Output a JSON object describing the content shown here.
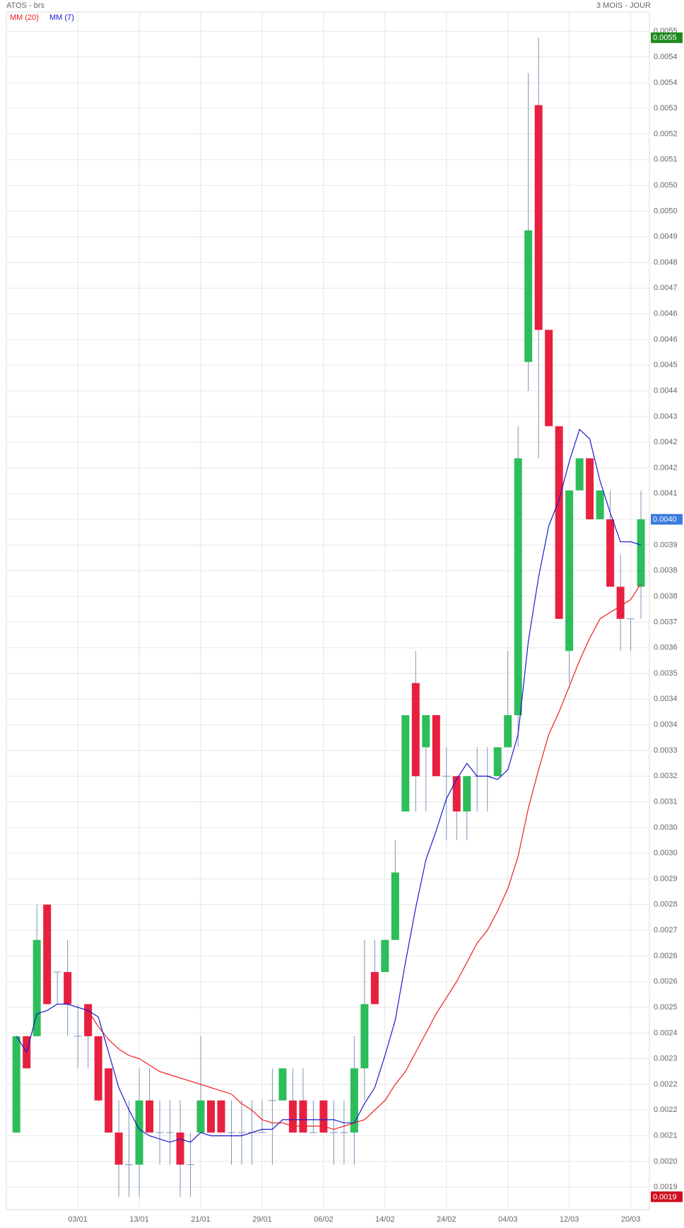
{
  "chart_data": {
    "type": "candlestick",
    "title": "ATOS - brs",
    "subtitle": "3 MOIS - JOUR",
    "categories": [
      null,
      null,
      null,
      null,
      null,
      null,
      "03/01",
      null,
      null,
      null,
      null,
      null,
      "13/01",
      null,
      null,
      null,
      null,
      null,
      "21/01",
      null,
      null,
      null,
      null,
      null,
      "29/01",
      null,
      null,
      null,
      null,
      null,
      "06/02",
      null,
      null,
      null,
      null,
      null,
      "14/02",
      null,
      null,
      null,
      null,
      null,
      "24/02",
      null,
      null,
      null,
      null,
      null,
      "04/03",
      null,
      null,
      null,
      null,
      null,
      "12/03",
      null,
      null,
      null,
      null,
      null,
      "20/03",
      null
    ],
    "open": [
      0.00209,
      0.00239,
      0.00239,
      0.0028,
      0.00259,
      0.00259,
      0.00239,
      0.00249,
      0.00239,
      0.00229,
      0.00209,
      0.00199,
      0.00199,
      0.00219,
      0.00209,
      0.00209,
      0.00209,
      0.00199,
      0.00209,
      0.00219,
      0.00219,
      0.00209,
      0.00209,
      0.00209,
      0.00209,
      0.00219,
      0.00219,
      0.00219,
      0.00219,
      0.00209,
      0.00219,
      0.00209,
      0.00209,
      0.00209,
      0.00229,
      0.00259,
      0.00259,
      0.00269,
      0.00309,
      0.00349,
      0.00329,
      0.00339,
      0.0032,
      0.0032,
      0.00309,
      0.0032,
      0.0032,
      0.0032,
      0.00329,
      0.00339,
      0.00449,
      0.00529,
      0.00459,
      0.00429,
      0.00359,
      0.00409,
      0.00419,
      0.004,
      0.004,
      0.00379,
      0.00369,
      0.00379
    ],
    "high": [
      0.00239,
      0.00239,
      0.0028,
      0.0028,
      0.00259,
      0.00269,
      0.00249,
      0.00249,
      0.00239,
      0.00229,
      0.00219,
      0.00219,
      0.00229,
      0.00229,
      0.00219,
      0.00219,
      0.00219,
      0.00209,
      0.00239,
      0.00219,
      0.00219,
      0.00219,
      0.00219,
      0.00219,
      0.00219,
      0.00229,
      0.00229,
      0.00229,
      0.00229,
      0.00219,
      0.00219,
      0.00219,
      0.00219,
      0.00239,
      0.00269,
      0.00269,
      0.00269,
      0.003,
      0.00339,
      0.00359,
      0.00339,
      0.00339,
      0.00329,
      0.0032,
      0.0032,
      0.00329,
      0.00329,
      0.00329,
      0.00359,
      0.00429,
      0.00539,
      0.0055,
      0.00459,
      0.00429,
      0.00409,
      0.00419,
      0.00419,
      0.00409,
      0.00409,
      0.00389,
      0.00369,
      0.00409
    ],
    "low": [
      0.00209,
      0.00229,
      0.00239,
      0.00249,
      0.00249,
      0.00239,
      0.00229,
      0.00229,
      0.00219,
      0.00209,
      0.00189,
      0.00189,
      0.00189,
      0.00209,
      0.00199,
      0.00199,
      0.00189,
      0.00189,
      0.00209,
      0.00209,
      0.00209,
      0.00199,
      0.00199,
      0.00199,
      0.00209,
      0.00199,
      0.00219,
      0.00209,
      0.00209,
      0.00209,
      0.00209,
      0.00199,
      0.00199,
      0.00199,
      0.00219,
      0.00249,
      0.00259,
      0.00269,
      0.00309,
      0.00309,
      0.00309,
      0.0032,
      0.003,
      0.003,
      0.003,
      0.00309,
      0.00309,
      0.0032,
      0.00329,
      0.00329,
      0.0044,
      0.00419,
      0.00429,
      0.00369,
      0.00349,
      0.00409,
      0.004,
      0.004,
      0.00379,
      0.00359,
      0.00359,
      0.00369
    ],
    "close": [
      0.00239,
      0.00229,
      0.00269,
      0.00249,
      0.00259,
      0.00249,
      0.00239,
      0.00239,
      0.00219,
      0.00209,
      0.00199,
      0.00199,
      0.00219,
      0.00209,
      0.00209,
      0.00209,
      0.00199,
      0.00199,
      0.00219,
      0.00209,
      0.00209,
      0.00209,
      0.00209,
      0.00209,
      0.00209,
      0.00219,
      0.00229,
      0.00209,
      0.00209,
      0.00209,
      0.00209,
      0.00209,
      0.00209,
      0.00229,
      0.00249,
      0.00249,
      0.00269,
      0.0029,
      0.00339,
      0.0032,
      0.00339,
      0.0032,
      0.0032,
      0.00309,
      0.0032,
      0.0032,
      0.0032,
      0.00329,
      0.00339,
      0.00419,
      0.0049,
      0.00459,
      0.00429,
      0.00369,
      0.00409,
      0.00419,
      0.004,
      0.00409,
      0.00379,
      0.00369,
      0.00369,
      0.004
    ],
    "up_color": "#2dbd5a",
    "down_color": "#e8203f",
    "wick_color": "#7f93b8",
    "series": [
      {
        "name": "MM (20)",
        "color": "#ee1c1c",
        "values": [
          null,
          null,
          null,
          null,
          null,
          null,
          null,
          0.00247,
          0.00242,
          0.00238,
          0.00235,
          0.00233,
          0.00232,
          0.0023,
          0.00228,
          0.00227,
          0.00226,
          0.00225,
          0.00224,
          0.00223,
          0.00222,
          0.00221,
          0.00218,
          0.00216,
          0.00213,
          0.00212,
          0.00212,
          0.00211,
          0.00211,
          0.00211,
          0.00211,
          0.0021,
          0.00211,
          0.00212,
          0.00213,
          0.00216,
          0.00219,
          0.00224,
          0.00228,
          0.00234,
          0.0024,
          0.00246,
          0.00251,
          0.00256,
          0.00262,
          0.00268,
          0.00272,
          0.00278,
          0.00285,
          0.00295,
          0.0031,
          0.00322,
          0.00333,
          0.0034,
          0.00348,
          0.00356,
          0.00363,
          0.00369,
          0.00371,
          0.00373,
          0.00375,
          0.0038
        ]
      },
      {
        "name": "MM (7)",
        "color": "#1a1ad0",
        "values": [
          0.00239,
          0.00234,
          0.00246,
          0.00247,
          0.00249,
          0.00249,
          0.00248,
          0.00247,
          0.00245,
          0.00234,
          0.00223,
          0.00216,
          0.0021,
          0.00208,
          0.00207,
          0.00206,
          0.00207,
          0.00206,
          0.00209,
          0.00208,
          0.00208,
          0.00208,
          0.00208,
          0.00209,
          0.0021,
          0.0021,
          0.00213,
          0.00213,
          0.00213,
          0.00213,
          0.00213,
          0.00213,
          0.00212,
          0.00212,
          0.00218,
          0.00223,
          0.00233,
          0.00244,
          0.00262,
          0.00279,
          0.00294,
          0.00303,
          0.00313,
          0.00319,
          0.00324,
          0.0032,
          0.0032,
          0.00319,
          0.00322,
          0.00333,
          0.00362,
          0.00382,
          0.00398,
          0.00406,
          0.00418,
          0.00428,
          0.00425,
          0.00412,
          0.00402,
          0.00393,
          0.00393,
          0.00392
        ]
      }
    ],
    "markers": [
      {
        "value": 0.0055,
        "label": "0.0055",
        "color": "#1f8a1f"
      },
      {
        "value": 0.004,
        "label": "0.0040",
        "color": "#3b7be0"
      },
      {
        "value": 0.00189,
        "label": "0.0019",
        "color": "#d01020"
      }
    ],
    "ylim": [
      0.00185,
      0.00558
    ],
    "yticks": [
      {
        "value": 0.00192,
        "label": "0.0019"
      },
      {
        "value": 0.002,
        "label": "0.0020"
      },
      {
        "value": 0.00208,
        "label": "0.0021"
      },
      {
        "value": 0.00216,
        "label": "0.0022"
      },
      {
        "value": 0.00224,
        "label": "0.0022"
      },
      {
        "value": 0.00232,
        "label": "0.0023"
      },
      {
        "value": 0.0024,
        "label": "0.0024"
      },
      {
        "value": 0.00248,
        "label": "0.0025"
      },
      {
        "value": 0.00256,
        "label": "0.0026"
      },
      {
        "value": 0.00264,
        "label": "0.0026"
      },
      {
        "value": 0.00272,
        "label": "0.0027"
      },
      {
        "value": 0.0028,
        "label": "0.0028"
      },
      {
        "value": 0.00288,
        "label": "0.0029"
      },
      {
        "value": 0.00296,
        "label": "0.0030"
      },
      {
        "value": 0.00304,
        "label": "0.0030"
      },
      {
        "value": 0.00312,
        "label": "0.0031"
      },
      {
        "value": 0.0032,
        "label": "0.0032"
      },
      {
        "value": 0.00328,
        "label": "0.0033"
      },
      {
        "value": 0.00336,
        "label": "0.0034"
      },
      {
        "value": 0.00344,
        "label": "0.0034"
      },
      {
        "value": 0.00352,
        "label": "0.0035"
      },
      {
        "value": 0.0036,
        "label": "0.0036"
      },
      {
        "value": 0.00368,
        "label": "0.0037"
      },
      {
        "value": 0.00376,
        "label": "0.0038"
      },
      {
        "value": 0.00384,
        "label": "0.0038"
      },
      {
        "value": 0.00392,
        "label": "0.0039"
      },
      {
        "value": 0.004,
        "label": "0.0040"
      },
      {
        "value": 0.00408,
        "label": "0.0041"
      },
      {
        "value": 0.00416,
        "label": "0.0042"
      },
      {
        "value": 0.00424,
        "label": "0.0042"
      },
      {
        "value": 0.00432,
        "label": "0.0043"
      },
      {
        "value": 0.0044,
        "label": "0.0044"
      },
      {
        "value": 0.00448,
        "label": "0.0045"
      },
      {
        "value": 0.00456,
        "label": "0.0046"
      },
      {
        "value": 0.00464,
        "label": "0.0046"
      },
      {
        "value": 0.00472,
        "label": "0.0047"
      },
      {
        "value": 0.0048,
        "label": "0.0048"
      },
      {
        "value": 0.00488,
        "label": "0.0049"
      },
      {
        "value": 0.00496,
        "label": "0.0050"
      },
      {
        "value": 0.00504,
        "label": "0.0050"
      },
      {
        "value": 0.00512,
        "label": "0.0051"
      },
      {
        "value": 0.0052,
        "label": "0.0052"
      },
      {
        "value": 0.00528,
        "label": "0.0053"
      },
      {
        "value": 0.00536,
        "label": "0.0054"
      },
      {
        "value": 0.00544,
        "label": "0.0054"
      },
      {
        "value": 0.00552,
        "label": "0.0055"
      }
    ],
    "grid": true
  }
}
